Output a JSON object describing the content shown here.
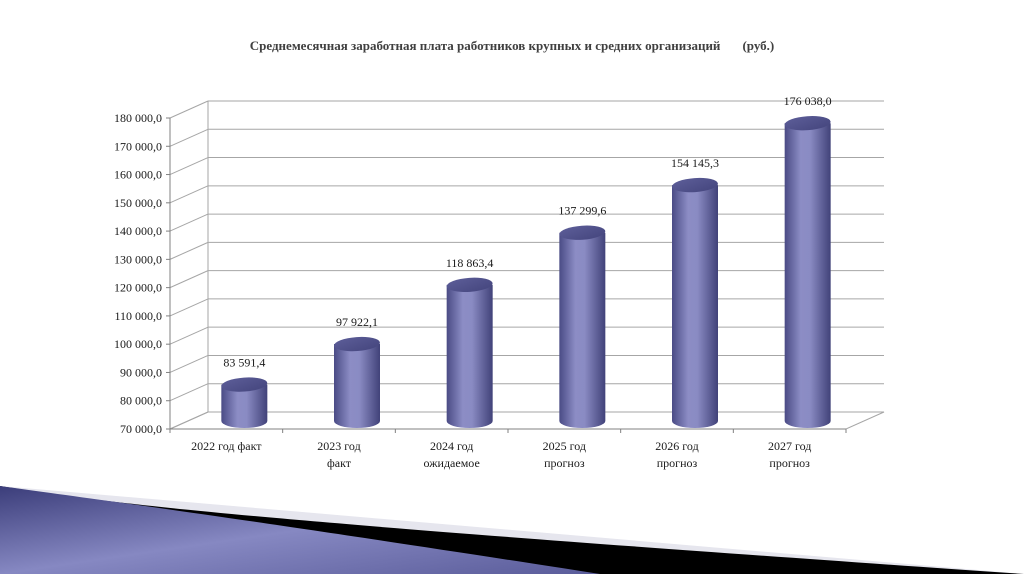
{
  "chart_data": {
    "type": "bar",
    "style": "3d-cylinder",
    "title": "Среднемесячная заработная плата работников крупных и средних организаций",
    "title_unit": "(руб.)",
    "xlabel": "",
    "ylabel": "",
    "categories": [
      [
        "2022 год факт"
      ],
      [
        "2023 год",
        "факт"
      ],
      [
        "2024 год",
        "ожидаемое"
      ],
      [
        "2025 год",
        "прогноз"
      ],
      [
        "2026 год",
        "прогноз"
      ],
      [
        "2027 год",
        "прогноз"
      ]
    ],
    "values": [
      83591.4,
      97922.1,
      118863.4,
      137299.6,
      154145.3,
      176038.0
    ],
    "value_labels": [
      "83 591,4",
      "97 922,1",
      "118 863,4",
      "137 299,6",
      "154 145,3",
      "176 038,0"
    ],
    "ylim": [
      70000,
      180000
    ],
    "yticks": [
      70000,
      80000,
      90000,
      100000,
      110000,
      120000,
      130000,
      140000,
      150000,
      160000,
      170000,
      180000
    ],
    "ytick_labels": [
      "70 000,0",
      "80 000,0",
      "90 000,0",
      "100 000,0",
      "110 000,0",
      "120 000,0",
      "130 000,0",
      "140 000,0",
      "150 000,0",
      "160 000,0",
      "170 000,0",
      "180 000,0"
    ],
    "grid": true,
    "legend": null,
    "colors": {
      "bar_light": "#8e8fc6",
      "bar_mid": "#6b6ca8",
      "bar_dark": "#3f4078",
      "grid": "#a6a6a6",
      "axis": "#808080"
    }
  },
  "decoration": {
    "corner_gradient_start": "#3b3d7a",
    "corner_gradient_end": "#8a8cc4"
  }
}
